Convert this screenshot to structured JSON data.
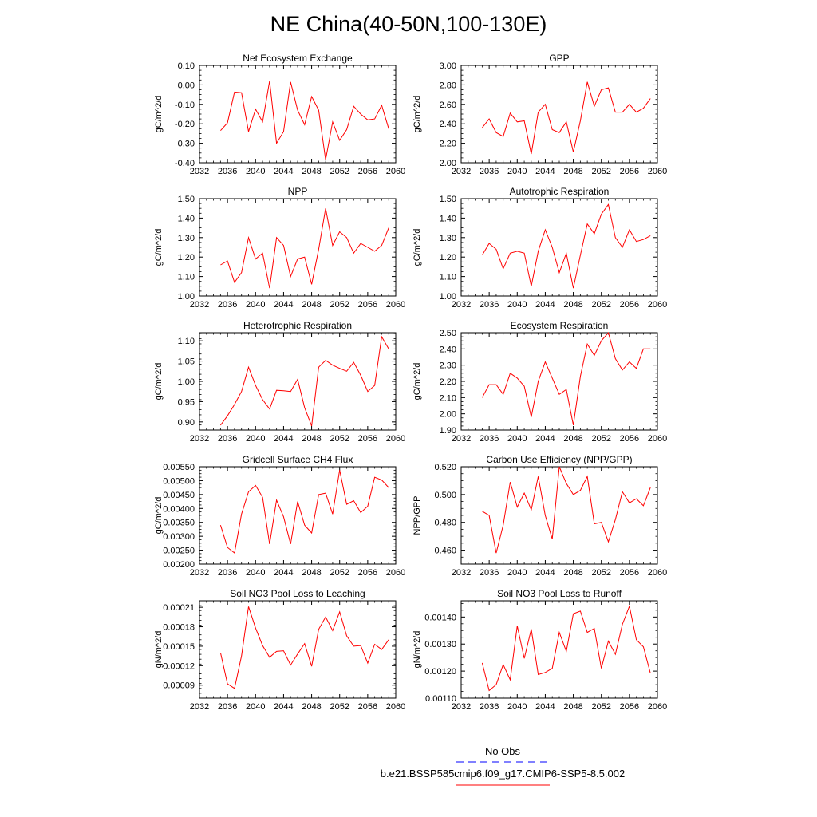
{
  "figure": {
    "title": "NE China(40-50N,100-130E)",
    "legend": [
      {
        "label": "No Obs",
        "color": "#0000ff",
        "dash": "dashed"
      },
      {
        "label": "b.e21.BSSP585cmip6.f09_g17.CMIP6-SSP5-8.5.002",
        "color": "#ff0000",
        "dash": "solid"
      }
    ]
  },
  "chart_data": [
    {
      "type": "line",
      "title": "Net Ecosystem Exchange",
      "ylabel": "gC/m^2/d",
      "xlim": [
        2032,
        2060
      ],
      "xticks": [
        "2032",
        "2036",
        "2040",
        "2044",
        "2048",
        "2052",
        "2056",
        "2060"
      ],
      "ylim": [
        -0.4,
        0.1
      ],
      "yticks": [
        "-0.40",
        "-0.30",
        "-0.20",
        "-0.10",
        "0.00",
        "0.10"
      ],
      "x": [
        2035,
        2036,
        2037,
        2038,
        2039,
        2040,
        2041,
        2042,
        2043,
        2044,
        2045,
        2046,
        2047,
        2048,
        2049,
        2050,
        2051,
        2052,
        2053,
        2054,
        2055,
        2056,
        2057,
        2058,
        2059
      ],
      "series": [
        {
          "color": "#ff0000",
          "values": [
            -0.235,
            -0.195,
            -0.037,
            -0.04,
            -0.24,
            -0.125,
            -0.19,
            0.02,
            -0.3,
            -0.24,
            0.015,
            -0.13,
            -0.205,
            -0.06,
            -0.13,
            -0.385,
            -0.19,
            -0.285,
            -0.23,
            -0.11,
            -0.15,
            -0.18,
            -0.175,
            -0.105,
            -0.225
          ]
        }
      ]
    },
    {
      "type": "line",
      "title": "GPP",
      "ylabel": "gC/m^2/d",
      "xlim": [
        2032,
        2060
      ],
      "xticks": [
        "2032",
        "2036",
        "2040",
        "2044",
        "2048",
        "2052",
        "2056",
        "2060"
      ],
      "ylim": [
        2.0,
        3.0
      ],
      "yticks": [
        "2.00",
        "2.20",
        "2.40",
        "2.60",
        "2.80",
        "3.00"
      ],
      "x": [
        2035,
        2036,
        2037,
        2038,
        2039,
        2040,
        2041,
        2042,
        2043,
        2044,
        2045,
        2046,
        2047,
        2048,
        2049,
        2050,
        2051,
        2052,
        2053,
        2054,
        2055,
        2056,
        2057,
        2058,
        2059
      ],
      "series": [
        {
          "color": "#ff0000",
          "values": [
            2.36,
            2.45,
            2.31,
            2.27,
            2.51,
            2.42,
            2.43,
            2.09,
            2.52,
            2.6,
            2.34,
            2.31,
            2.42,
            2.11,
            2.43,
            2.83,
            2.58,
            2.75,
            2.77,
            2.52,
            2.52,
            2.6,
            2.52,
            2.56,
            2.66
          ]
        }
      ]
    },
    {
      "type": "line",
      "title": "NPP",
      "ylabel": "gC/m^2/d",
      "xlim": [
        2032,
        2060
      ],
      "xticks": [
        "2032",
        "2036",
        "2040",
        "2044",
        "2048",
        "2052",
        "2056",
        "2060"
      ],
      "ylim": [
        1.0,
        1.5
      ],
      "yticks": [
        "1.00",
        "1.10",
        "1.20",
        "1.30",
        "1.40",
        "1.50"
      ],
      "x": [
        2035,
        2036,
        2037,
        2038,
        2039,
        2040,
        2041,
        2042,
        2043,
        2044,
        2045,
        2046,
        2047,
        2048,
        2049,
        2050,
        2051,
        2052,
        2053,
        2054,
        2055,
        2056,
        2057,
        2058,
        2059
      ],
      "series": [
        {
          "color": "#ff0000",
          "values": [
            1.16,
            1.18,
            1.07,
            1.12,
            1.3,
            1.19,
            1.22,
            1.04,
            1.3,
            1.26,
            1.1,
            1.19,
            1.2,
            1.06,
            1.24,
            1.45,
            1.26,
            1.33,
            1.3,
            1.22,
            1.27,
            1.25,
            1.23,
            1.26,
            1.35
          ]
        }
      ]
    },
    {
      "type": "line",
      "title": "Autotrophic Respiration",
      "ylabel": "gC/m^2/d",
      "xlim": [
        2032,
        2060
      ],
      "xticks": [
        "2032",
        "2036",
        "2040",
        "2044",
        "2048",
        "2052",
        "2056",
        "2060"
      ],
      "ylim": [
        1.0,
        1.5
      ],
      "yticks": [
        "1.00",
        "1.10",
        "1.20",
        "1.30",
        "1.40",
        "1.50"
      ],
      "x": [
        2035,
        2036,
        2037,
        2038,
        2039,
        2040,
        2041,
        2042,
        2043,
        2044,
        2045,
        2046,
        2047,
        2048,
        2049,
        2050,
        2051,
        2052,
        2053,
        2054,
        2055,
        2056,
        2057,
        2058,
        2059
      ],
      "series": [
        {
          "color": "#ff0000",
          "values": [
            1.21,
            1.27,
            1.24,
            1.14,
            1.22,
            1.23,
            1.22,
            1.05,
            1.23,
            1.34,
            1.25,
            1.12,
            1.22,
            1.04,
            1.21,
            1.37,
            1.32,
            1.42,
            1.47,
            1.3,
            1.25,
            1.34,
            1.28,
            1.29,
            1.31
          ]
        }
      ]
    },
    {
      "type": "line",
      "title": "Heterotrophic Respiration",
      "ylabel": "gC/m^2/d",
      "xlim": [
        2032,
        2060
      ],
      "xticks": [
        "2032",
        "2036",
        "2040",
        "2044",
        "2048",
        "2052",
        "2056",
        "2060"
      ],
      "ylim": [
        0.88,
        1.12
      ],
      "yticks": [
        "0.90",
        "0.95",
        "1.00",
        "1.05",
        "1.10"
      ],
      "x": [
        2035,
        2036,
        2037,
        2038,
        2039,
        2040,
        2041,
        2042,
        2043,
        2044,
        2045,
        2046,
        2047,
        2048,
        2049,
        2050,
        2051,
        2052,
        2053,
        2054,
        2055,
        2056,
        2057,
        2058,
        2059
      ],
      "series": [
        {
          "color": "#ff0000",
          "values": [
            0.892,
            0.915,
            0.943,
            0.975,
            1.035,
            0.99,
            0.955,
            0.932,
            0.978,
            0.977,
            0.975,
            1.005,
            0.935,
            0.89,
            1.035,
            1.052,
            1.04,
            1.032,
            1.025,
            1.047,
            1.015,
            0.975,
            0.99,
            1.11,
            1.08
          ]
        }
      ]
    },
    {
      "type": "line",
      "title": "Ecosystem Respiration",
      "ylabel": "gC/m^2/d",
      "xlim": [
        2032,
        2060
      ],
      "xticks": [
        "2032",
        "2036",
        "2040",
        "2044",
        "2048",
        "2052",
        "2056",
        "2060"
      ],
      "ylim": [
        1.9,
        2.5
      ],
      "yticks": [
        "1.90",
        "2.00",
        "2.10",
        "2.20",
        "2.30",
        "2.40",
        "2.50"
      ],
      "x": [
        2035,
        2036,
        2037,
        2038,
        2039,
        2040,
        2041,
        2042,
        2043,
        2044,
        2045,
        2046,
        2047,
        2048,
        2049,
        2050,
        2051,
        2052,
        2053,
        2054,
        2055,
        2056,
        2057,
        2058,
        2059
      ],
      "series": [
        {
          "color": "#ff0000",
          "values": [
            2.1,
            2.18,
            2.18,
            2.12,
            2.25,
            2.22,
            2.17,
            1.98,
            2.2,
            2.32,
            2.22,
            2.12,
            2.15,
            1.93,
            2.23,
            2.43,
            2.36,
            2.45,
            2.5,
            2.34,
            2.27,
            2.32,
            2.28,
            2.4,
            2.4
          ]
        }
      ]
    },
    {
      "type": "line",
      "title": "Gridcell Surface CH4 Flux",
      "ylabel": "gC/m^2/d",
      "xlim": [
        2032,
        2060
      ],
      "xticks": [
        "2032",
        "2036",
        "2040",
        "2044",
        "2048",
        "2052",
        "2056",
        "2060"
      ],
      "ylim": [
        0.002,
        0.0055
      ],
      "yticks": [
        "0.00200",
        "0.00250",
        "0.00300",
        "0.00350",
        "0.00400",
        "0.00450",
        "0.00500",
        "0.00550"
      ],
      "x": [
        2035,
        2036,
        2037,
        2038,
        2039,
        2040,
        2041,
        2042,
        2043,
        2044,
        2045,
        2046,
        2047,
        2048,
        2049,
        2050,
        2051,
        2052,
        2053,
        2054,
        2055,
        2056,
        2057,
        2058,
        2059
      ],
      "series": [
        {
          "color": "#ff0000",
          "values": [
            0.0034,
            0.0026,
            0.0024,
            0.0038,
            0.0046,
            0.00483,
            0.0044,
            0.00272,
            0.0043,
            0.0037,
            0.00272,
            0.00425,
            0.0034,
            0.00312,
            0.0045,
            0.00455,
            0.0038,
            0.00538,
            0.00415,
            0.00428,
            0.00385,
            0.00408,
            0.00512,
            0.00502,
            0.00475
          ]
        }
      ]
    },
    {
      "type": "line",
      "title": "Carbon Use Efficiency (NPP/GPP)",
      "ylabel": "NPP/GPP",
      "xlim": [
        2032,
        2060
      ],
      "xticks": [
        "2032",
        "2036",
        "2040",
        "2044",
        "2048",
        "2052",
        "2056",
        "2060"
      ],
      "ylim": [
        0.45,
        0.52
      ],
      "yticks": [
        "0.460",
        "0.480",
        "0.500",
        "0.520"
      ],
      "x": [
        2035,
        2036,
        2037,
        2038,
        2039,
        2040,
        2041,
        2042,
        2043,
        2044,
        2045,
        2046,
        2047,
        2048,
        2049,
        2050,
        2051,
        2052,
        2053,
        2054,
        2055,
        2056,
        2057,
        2058,
        2059
      ],
      "series": [
        {
          "color": "#ff0000",
          "values": [
            0.488,
            0.485,
            0.458,
            0.478,
            0.509,
            0.491,
            0.501,
            0.489,
            0.513,
            0.485,
            0.468,
            0.52,
            0.508,
            0.5,
            0.503,
            0.513,
            0.479,
            0.48,
            0.466,
            0.482,
            0.502,
            0.494,
            0.497,
            0.492,
            0.505
          ]
        }
      ]
    },
    {
      "type": "line",
      "title": "Soil NO3 Pool Loss to Leaching",
      "ylabel": "gN/m^2/d",
      "xlim": [
        2032,
        2060
      ],
      "xticks": [
        "2032",
        "2036",
        "2040",
        "2044",
        "2048",
        "2052",
        "2056",
        "2060"
      ],
      "ylim": [
        7e-05,
        0.00022
      ],
      "yticks": [
        "0.00009",
        "0.00012",
        "0.00015",
        "0.00018",
        "0.00021"
      ],
      "x": [
        2035,
        2036,
        2037,
        2038,
        2039,
        2040,
        2041,
        2042,
        2043,
        2044,
        2045,
        2046,
        2047,
        2048,
        2049,
        2050,
        2051,
        2052,
        2053,
        2054,
        2055,
        2056,
        2057,
        2058,
        2059
      ],
      "series": [
        {
          "color": "#ff0000",
          "values": [
            0.00014,
            9.2e-05,
            8.5e-05,
            0.000135,
            0.000211,
            0.000178,
            0.000151,
            0.000133,
            0.000142,
            0.000143,
            0.000121,
            0.000138,
            0.000154,
            0.000119,
            0.000176,
            0.000195,
            0.000174,
            0.000203,
            0.000166,
            0.00015,
            0.000151,
            0.000124,
            0.000153,
            0.000145,
            0.00016
          ]
        }
      ]
    },
    {
      "type": "line",
      "title": "Soil NO3 Pool Loss to Runoff",
      "ylabel": "gN/m^2/d",
      "xlim": [
        2032,
        2060
      ],
      "xticks": [
        "2032",
        "2036",
        "2040",
        "2044",
        "2048",
        "2052",
        "2056",
        "2060"
      ],
      "ylim": [
        0.0011,
        0.00146
      ],
      "yticks": [
        "0.00110",
        "0.00120",
        "0.00130",
        "0.00140"
      ],
      "x": [
        2035,
        2036,
        2037,
        2038,
        2039,
        2040,
        2041,
        2042,
        2043,
        2044,
        2045,
        2046,
        2047,
        2048,
        2049,
        2050,
        2051,
        2052,
        2053,
        2054,
        2055,
        2056,
        2057,
        2058,
        2059
      ],
      "series": [
        {
          "color": "#ff0000",
          "values": [
            0.00123,
            0.001128,
            0.00115,
            0.001224,
            0.001168,
            0.001367,
            0.001247,
            0.001355,
            0.001187,
            0.001195,
            0.00121,
            0.001343,
            0.001273,
            0.001412,
            0.001422,
            0.001343,
            0.001358,
            0.00121,
            0.001311,
            0.001262,
            0.001373,
            0.00144,
            0.001316,
            0.00129,
            0.001192
          ]
        }
      ]
    }
  ]
}
